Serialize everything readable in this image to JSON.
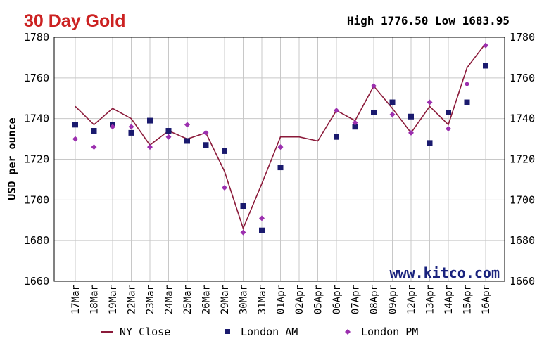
{
  "chart_data": {
    "type": "line",
    "title": "30 Day Gold",
    "high_low": "High 1776.50 Low 1683.95",
    "ylabel": "USD per ounce",
    "watermark": "www.kitco.com",
    "ylim": [
      1660,
      1780
    ],
    "yticks": [
      1660,
      1680,
      1700,
      1720,
      1740,
      1760,
      1780
    ],
    "grid": true,
    "legend_position": "bottom",
    "categories": [
      "17Mar",
      "18Mar",
      "19Mar",
      "22Mar",
      "23Mar",
      "24Mar",
      "25Mar",
      "26Mar",
      "29Mar",
      "30Mar",
      "31Mar",
      "01Apr",
      "02Apr",
      "05Apr",
      "06Apr",
      "07Apr",
      "08Apr",
      "09Apr",
      "12Apr",
      "13Apr",
      "14Apr",
      "15Apr",
      "16Apr"
    ],
    "series": [
      {
        "name": "NY Close",
        "kind": "line",
        "color": "#8b1a3a",
        "values": [
          1746,
          1737,
          1745,
          1740,
          1727,
          1734,
          1730,
          1733,
          1714,
          1686,
          1708,
          1731,
          1731,
          1729,
          1744,
          1739,
          1756,
          1745,
          1733,
          1746,
          1737,
          1765,
          1777
        ]
      },
      {
        "name": "London AM",
        "kind": "square",
        "color": "#1a1a6e",
        "values": [
          1737,
          1734,
          1737,
          1733,
          1739,
          1734,
          1729,
          1727,
          1724,
          1697,
          1685,
          1716,
          null,
          null,
          1731,
          1736,
          1743,
          1748,
          1741,
          1728,
          1743,
          1748,
          1766
        ]
      },
      {
        "name": "London PM",
        "kind": "diamond",
        "color": "#9b2fae",
        "values": [
          1730,
          1726,
          1736,
          1736,
          1726,
          1731,
          1737,
          1733,
          1706,
          1684,
          1691,
          1726,
          null,
          null,
          1744,
          1738,
          1756,
          1742,
          1733,
          1748,
          1735,
          1757,
          1776
        ]
      }
    ]
  },
  "colors": {
    "title": "#cc2222",
    "watermark": "#1a237e",
    "grid": "#c8c8c8",
    "axis": "#000000"
  }
}
